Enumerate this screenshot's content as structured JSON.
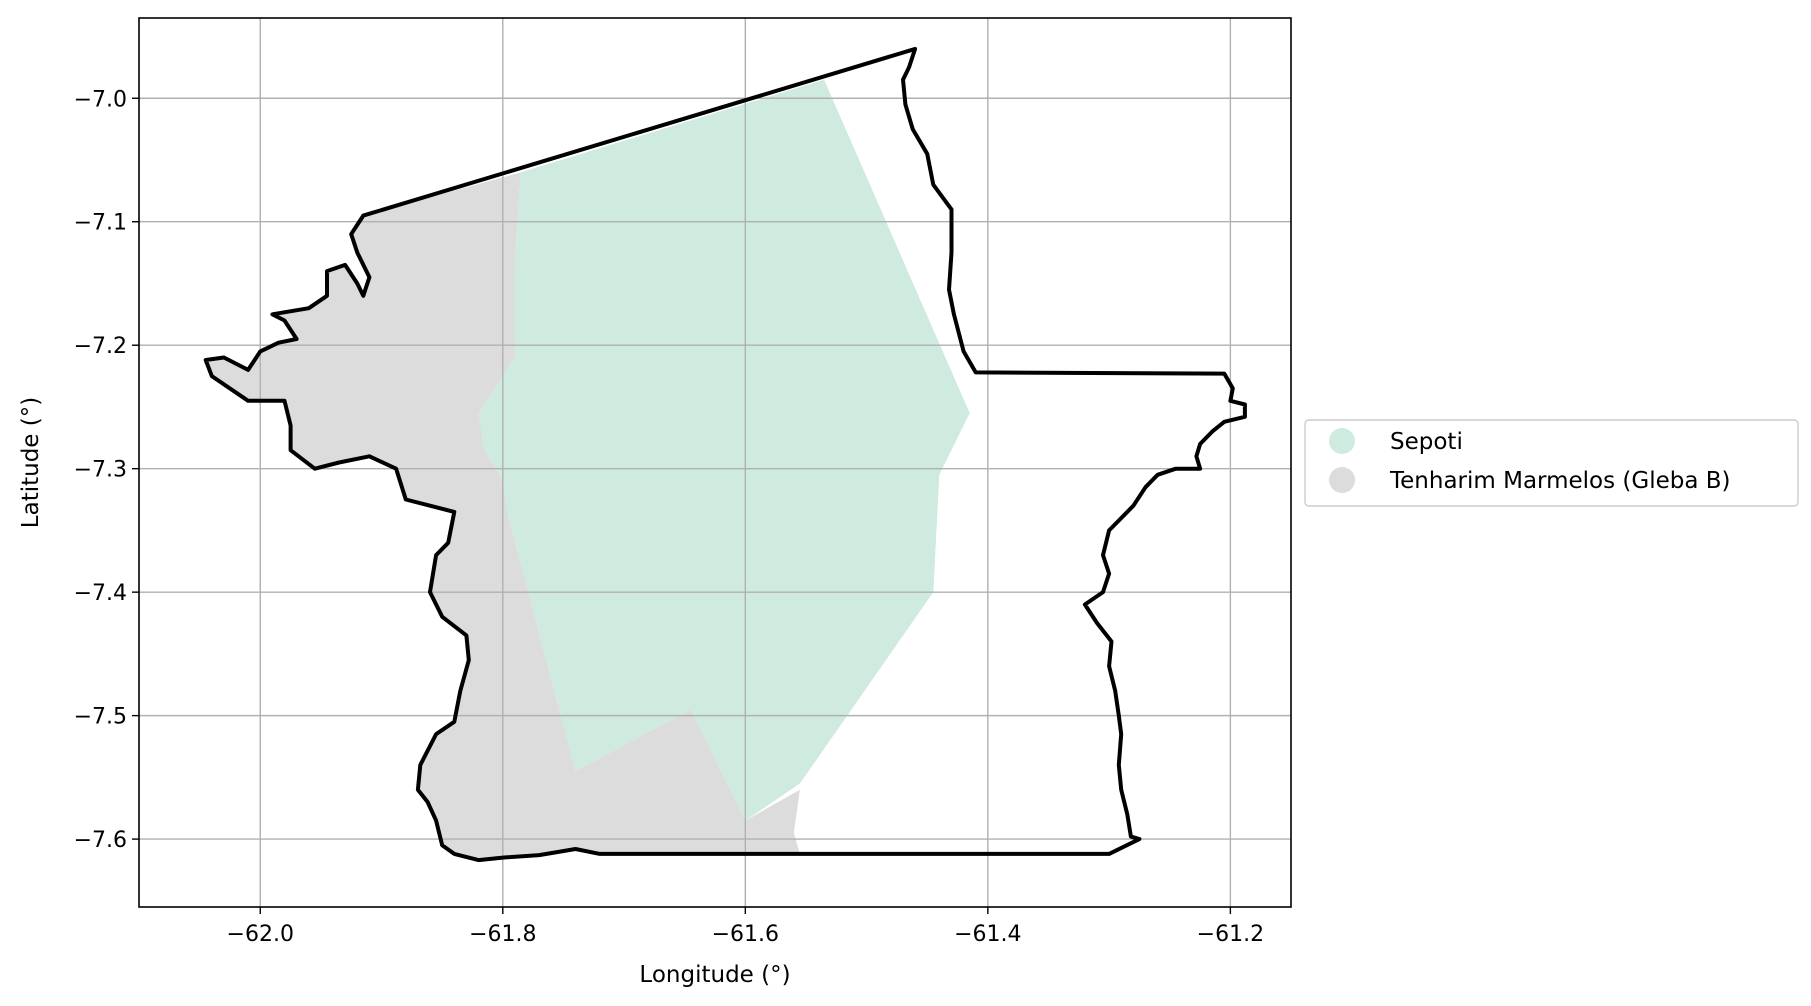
{
  "chart_data": {
    "type": "map",
    "xlabel": "Longitude (°)",
    "ylabel": "Latitude (°)",
    "xlim": [
      -62.1,
      -61.15
    ],
    "ylim": [
      -7.655,
      -6.935
    ],
    "xticks": [
      -62.0,
      -61.8,
      -61.6,
      -61.4,
      -61.2
    ],
    "yticks": [
      -7.0,
      -7.1,
      -7.2,
      -7.3,
      -7.4,
      -7.5,
      -7.6
    ],
    "xtick_labels": [
      "−62.0",
      "−61.8",
      "−61.6",
      "−61.4",
      "−61.2"
    ],
    "ytick_labels": [
      "−7.0",
      "−7.1",
      "−7.2",
      "−7.3",
      "−7.4",
      "−7.5",
      "−7.6"
    ],
    "grid": true,
    "legend_position": "right, outside plot",
    "legend": [
      {
        "name": "Sepoti",
        "color": "#cfeadf"
      },
      {
        "name": "Tenharim Marmelos (Gleba B)",
        "color": "#dcdcdc"
      }
    ],
    "regions": [
      {
        "name": "Tenharim Marmelos (Gleba B)",
        "color": "#dcdcdc",
        "coords": [
          [
            -61.915,
            -7.095
          ],
          [
            -61.785,
            -7.06
          ],
          [
            -61.79,
            -7.13
          ],
          [
            -61.79,
            -7.21
          ],
          [
            -61.82,
            -7.255
          ],
          [
            -61.815,
            -7.285
          ],
          [
            -61.8,
            -7.31
          ],
          [
            -61.795,
            -7.34
          ],
          [
            -61.74,
            -7.545
          ],
          [
            -61.645,
            -7.495
          ],
          [
            -61.6,
            -7.585
          ],
          [
            -61.555,
            -7.56
          ],
          [
            -61.56,
            -7.595
          ],
          [
            -61.555,
            -7.612
          ],
          [
            -61.72,
            -7.612
          ],
          [
            -61.74,
            -7.608
          ],
          [
            -61.77,
            -7.613
          ],
          [
            -61.8,
            -7.615
          ],
          [
            -61.82,
            -7.617
          ],
          [
            -61.84,
            -7.612
          ],
          [
            -61.85,
            -7.605
          ],
          [
            -61.855,
            -7.585
          ],
          [
            -61.862,
            -7.57
          ],
          [
            -61.87,
            -7.56
          ],
          [
            -61.868,
            -7.54
          ],
          [
            -61.855,
            -7.515
          ],
          [
            -61.84,
            -7.505
          ],
          [
            -61.835,
            -7.48
          ],
          [
            -61.828,
            -7.455
          ],
          [
            -61.83,
            -7.435
          ],
          [
            -61.85,
            -7.42
          ],
          [
            -61.86,
            -7.4
          ],
          [
            -61.855,
            -7.37
          ],
          [
            -61.845,
            -7.36
          ],
          [
            -61.84,
            -7.335
          ],
          [
            -61.86,
            -7.33
          ],
          [
            -61.88,
            -7.325
          ],
          [
            -61.888,
            -7.3
          ],
          [
            -61.91,
            -7.29
          ],
          [
            -61.935,
            -7.295
          ],
          [
            -61.955,
            -7.3
          ],
          [
            -61.975,
            -7.285
          ],
          [
            -61.975,
            -7.265
          ],
          [
            -61.98,
            -7.245
          ],
          [
            -62.01,
            -7.245
          ],
          [
            -62.04,
            -7.225
          ],
          [
            -62.045,
            -7.212
          ],
          [
            -62.03,
            -7.21
          ],
          [
            -62.01,
            -7.22
          ],
          [
            -62.0,
            -7.205
          ],
          [
            -61.985,
            -7.198
          ],
          [
            -61.97,
            -7.195
          ],
          [
            -61.98,
            -7.18
          ],
          [
            -61.99,
            -7.175
          ],
          [
            -61.96,
            -7.17
          ],
          [
            -61.945,
            -7.16
          ],
          [
            -61.945,
            -7.14
          ],
          [
            -61.93,
            -7.135
          ],
          [
            -61.92,
            -7.15
          ],
          [
            -61.915,
            -7.16
          ],
          [
            -61.91,
            -7.145
          ],
          [
            -61.92,
            -7.125
          ],
          [
            -61.925,
            -7.11
          ]
        ]
      },
      {
        "name": "Sepoti",
        "color": "#cfeadf",
        "coords": [
          [
            -61.785,
            -7.06
          ],
          [
            -61.535,
            -6.985
          ],
          [
            -61.415,
            -7.255
          ],
          [
            -61.44,
            -7.305
          ],
          [
            -61.445,
            -7.4
          ],
          [
            -61.555,
            -7.555
          ],
          [
            -61.6,
            -7.585
          ],
          [
            -61.645,
            -7.495
          ],
          [
            -61.74,
            -7.545
          ],
          [
            -61.795,
            -7.34
          ],
          [
            -61.8,
            -7.31
          ],
          [
            -61.815,
            -7.285
          ],
          [
            -61.82,
            -7.255
          ],
          [
            -61.79,
            -7.21
          ],
          [
            -61.79,
            -7.13
          ]
        ]
      }
    ],
    "outline": [
      [
        -61.915,
        -7.095
      ],
      [
        -61.46,
        -6.96
      ],
      [
        -61.465,
        -6.975
      ],
      [
        -61.47,
        -6.985
      ],
      [
        -61.468,
        -7.005
      ],
      [
        -61.462,
        -7.025
      ],
      [
        -61.45,
        -7.045
      ],
      [
        -61.445,
        -7.07
      ],
      [
        -61.43,
        -7.09
      ],
      [
        -61.43,
        -7.125
      ],
      [
        -61.432,
        -7.155
      ],
      [
        -61.428,
        -7.175
      ],
      [
        -61.42,
        -7.205
      ],
      [
        -61.41,
        -7.222
      ],
      [
        -61.205,
        -7.223
      ],
      [
        -61.198,
        -7.235
      ],
      [
        -61.2,
        -7.245
      ],
      [
        -61.188,
        -7.248
      ],
      [
        -61.188,
        -7.258
      ],
      [
        -61.205,
        -7.262
      ],
      [
        -61.215,
        -7.27
      ],
      [
        -61.225,
        -7.28
      ],
      [
        -61.228,
        -7.29
      ],
      [
        -61.225,
        -7.3
      ],
      [
        -61.245,
        -7.3
      ],
      [
        -61.26,
        -7.305
      ],
      [
        -61.27,
        -7.315
      ],
      [
        -61.28,
        -7.33
      ],
      [
        -61.3,
        -7.35
      ],
      [
        -61.305,
        -7.37
      ],
      [
        -61.3,
        -7.385
      ],
      [
        -61.305,
        -7.4
      ],
      [
        -61.32,
        -7.41
      ],
      [
        -61.31,
        -7.425
      ],
      [
        -61.298,
        -7.44
      ],
      [
        -61.3,
        -7.46
      ],
      [
        -61.295,
        -7.48
      ],
      [
        -61.292,
        -7.5
      ],
      [
        -61.29,
        -7.515
      ],
      [
        -61.292,
        -7.54
      ],
      [
        -61.29,
        -7.56
      ],
      [
        -61.285,
        -7.58
      ],
      [
        -61.282,
        -7.598
      ],
      [
        -61.275,
        -7.6
      ],
      [
        -61.3,
        -7.612
      ],
      [
        -61.72,
        -7.612
      ],
      [
        -61.74,
        -7.608
      ],
      [
        -61.77,
        -7.613
      ],
      [
        -61.8,
        -7.615
      ],
      [
        -61.82,
        -7.617
      ],
      [
        -61.84,
        -7.612
      ],
      [
        -61.85,
        -7.605
      ],
      [
        -61.855,
        -7.585
      ],
      [
        -61.862,
        -7.57
      ],
      [
        -61.87,
        -7.56
      ],
      [
        -61.868,
        -7.54
      ],
      [
        -61.855,
        -7.515
      ],
      [
        -61.84,
        -7.505
      ],
      [
        -61.835,
        -7.48
      ],
      [
        -61.828,
        -7.455
      ],
      [
        -61.83,
        -7.435
      ],
      [
        -61.85,
        -7.42
      ],
      [
        -61.86,
        -7.4
      ],
      [
        -61.855,
        -7.37
      ],
      [
        -61.845,
        -7.36
      ],
      [
        -61.84,
        -7.335
      ],
      [
        -61.86,
        -7.33
      ],
      [
        -61.88,
        -7.325
      ],
      [
        -61.888,
        -7.3
      ],
      [
        -61.91,
        -7.29
      ],
      [
        -61.935,
        -7.295
      ],
      [
        -61.955,
        -7.3
      ],
      [
        -61.975,
        -7.285
      ],
      [
        -61.975,
        -7.265
      ],
      [
        -61.98,
        -7.245
      ],
      [
        -62.01,
        -7.245
      ],
      [
        -62.04,
        -7.225
      ],
      [
        -62.045,
        -7.212
      ],
      [
        -62.03,
        -7.21
      ],
      [
        -62.01,
        -7.22
      ],
      [
        -62.0,
        -7.205
      ],
      [
        -61.985,
        -7.198
      ],
      [
        -61.97,
        -7.195
      ],
      [
        -61.98,
        -7.18
      ],
      [
        -61.99,
        -7.175
      ],
      [
        -61.96,
        -7.17
      ],
      [
        -61.945,
        -7.16
      ],
      [
        -61.945,
        -7.14
      ],
      [
        -61.93,
        -7.135
      ],
      [
        -61.92,
        -7.15
      ],
      [
        -61.915,
        -7.16
      ],
      [
        -61.91,
        -7.145
      ],
      [
        -61.92,
        -7.125
      ],
      [
        -61.925,
        -7.11
      ]
    ]
  }
}
